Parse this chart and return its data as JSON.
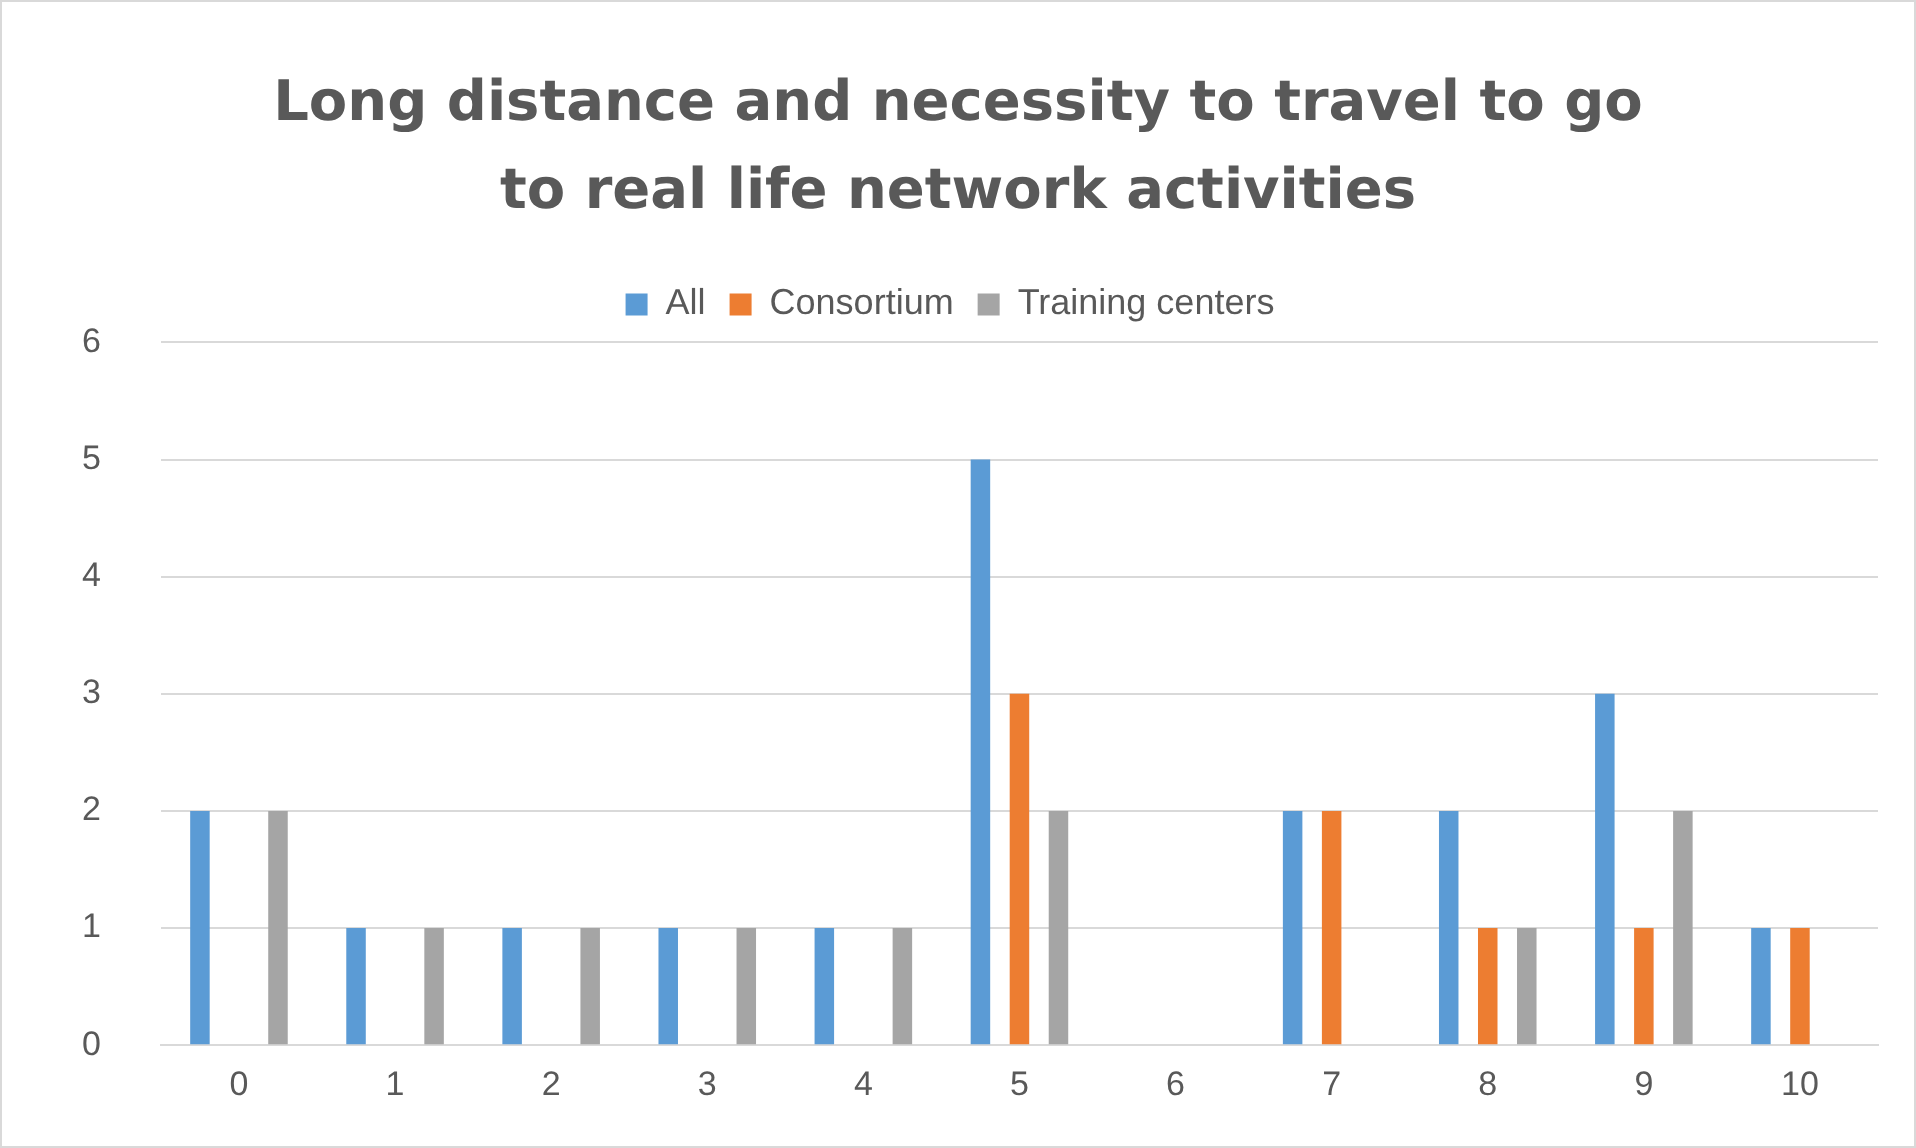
{
  "chart_data": {
    "type": "bar",
    "title": "Long distance and necessity to travel to go to real life network activities",
    "categories": [
      "0",
      "1",
      "2",
      "3",
      "4",
      "5",
      "6",
      "7",
      "8",
      "9",
      "10"
    ],
    "series": [
      {
        "name": "All",
        "color": "#5b9bd5",
        "values": [
          2,
          1,
          1,
          1,
          1,
          5,
          0,
          2,
          2,
          3,
          1
        ]
      },
      {
        "name": "Consortium",
        "color": "#ed7d31",
        "values": [
          0,
          0,
          0,
          0,
          0,
          3,
          0,
          2,
          1,
          1,
          1
        ]
      },
      {
        "name": "Training centers",
        "color": "#a5a5a5",
        "values": [
          2,
          1,
          1,
          1,
          1,
          2,
          0,
          0,
          1,
          2,
          0
        ]
      }
    ],
    "ylim": [
      0,
      6
    ],
    "yticks": [
      0,
      1,
      2,
      3,
      4,
      5,
      6
    ],
    "grid": "y",
    "legend": "top"
  }
}
